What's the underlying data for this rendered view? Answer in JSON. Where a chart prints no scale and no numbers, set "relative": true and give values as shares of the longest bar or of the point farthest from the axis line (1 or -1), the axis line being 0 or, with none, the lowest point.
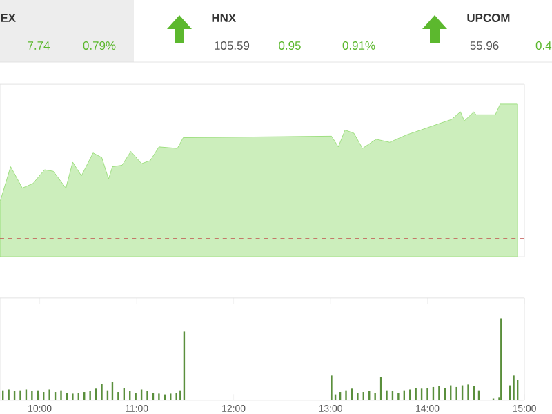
{
  "chart_data": [
    {
      "type": "other",
      "annotations": [
        "EX",
        "7.74",
        "0.79%",
        "HNX",
        "105.59",
        "0.95",
        "0.91%",
        "UPCOM",
        "55.96",
        "0.4"
      ]
    },
    {
      "type": "area",
      "relative": true,
      "tick_labels": false,
      "xlim": [
        9.59,
        15.0
      ],
      "color": "#8ed96b",
      "x": [
        9.59,
        9.7,
        9.82,
        9.93,
        10.05,
        10.14,
        10.27,
        10.34,
        10.43,
        10.55,
        10.64,
        10.71,
        10.75,
        10.85,
        10.94,
        11.05,
        11.14,
        11.23,
        11.42,
        11.48,
        13.01,
        13.08,
        13.15,
        13.24,
        13.33,
        13.47,
        13.61,
        13.79,
        13.93,
        14.11,
        14.25,
        14.34,
        14.38,
        14.48,
        14.5,
        14.7,
        14.75,
        14.93
      ],
      "values": [
        0.36,
        0.59,
        0.45,
        0.48,
        0.57,
        0.56,
        0.45,
        0.62,
        0.53,
        0.68,
        0.65,
        0.51,
        0.59,
        0.6,
        0.69,
        0.61,
        0.63,
        0.72,
        0.71,
        0.78,
        0.79,
        0.72,
        0.83,
        0.81,
        0.71,
        0.77,
        0.75,
        0.8,
        0.83,
        0.87,
        0.9,
        0.95,
        0.89,
        0.95,
        0.93,
        0.93,
        1.0,
        1.0
      ],
      "ref_lines": [
        {
          "axis": "y",
          "value": 0.12,
          "color": "#c0504d",
          "line_style": "dashed"
        }
      ]
    },
    {
      "type": "bar",
      "relative": true,
      "tick_labels": "x",
      "xlim": [
        9.59,
        15.0
      ],
      "color": "#5a8f3c",
      "xticks": [
        {
          "value": 10,
          "label": "10:00"
        },
        {
          "value": 11,
          "label": "11:00"
        },
        {
          "value": 12,
          "label": "12:00"
        },
        {
          "value": 13,
          "label": "13:00"
        },
        {
          "value": 14,
          "label": "14:00"
        },
        {
          "value": 15,
          "label": "15:00"
        }
      ],
      "x": [
        9.62,
        9.68,
        9.74,
        9.8,
        9.86,
        9.92,
        9.98,
        10.04,
        10.1,
        10.16,
        10.22,
        10.28,
        10.34,
        10.4,
        10.46,
        10.52,
        10.58,
        10.64,
        10.7,
        10.75,
        10.81,
        10.87,
        10.93,
        10.99,
        11.05,
        11.11,
        11.17,
        11.23,
        11.29,
        11.35,
        11.41,
        11.45,
        11.49,
        13.01,
        13.05,
        13.1,
        13.16,
        13.22,
        13.28,
        13.34,
        13.4,
        13.46,
        13.52,
        13.58,
        13.64,
        13.7,
        13.76,
        13.82,
        13.88,
        13.94,
        14.0,
        14.06,
        14.12,
        14.18,
        14.24,
        14.3,
        14.36,
        14.42,
        14.48,
        14.53,
        14.68,
        14.74,
        14.76,
        14.85,
        14.89,
        14.93
      ],
      "values": [
        0.12,
        0.13,
        0.11,
        0.12,
        0.13,
        0.11,
        0.12,
        0.1,
        0.13,
        0.1,
        0.12,
        0.09,
        0.08,
        0.09,
        0.1,
        0.11,
        0.14,
        0.2,
        0.12,
        0.22,
        0.1,
        0.15,
        0.11,
        0.09,
        0.13,
        0.11,
        0.09,
        0.08,
        0.07,
        0.08,
        0.09,
        0.12,
        0.84,
        0.3,
        0.07,
        0.1,
        0.12,
        0.14,
        0.09,
        0.1,
        0.11,
        0.09,
        0.28,
        0.12,
        0.11,
        0.09,
        0.12,
        0.13,
        0.15,
        0.14,
        0.15,
        0.16,
        0.17,
        0.15,
        0.18,
        0.16,
        0.18,
        0.19,
        0.17,
        0.12,
        0.02,
        0.03,
        1.0,
        0.18,
        0.3,
        0.25
      ]
    }
  ]
}
